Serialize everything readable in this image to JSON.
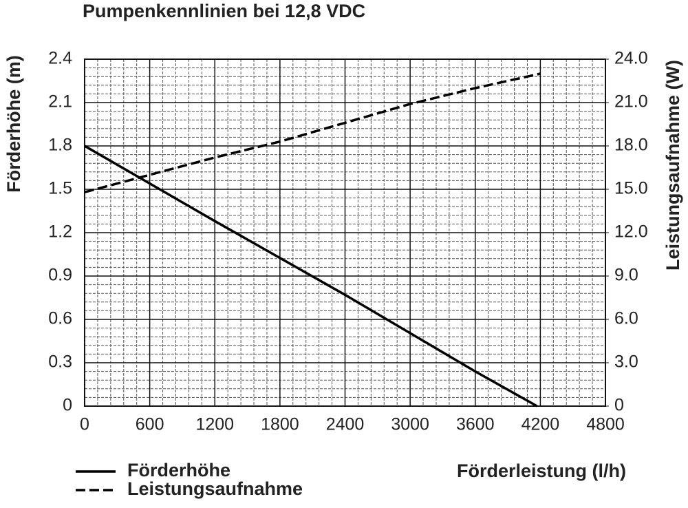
{
  "chart_data": {
    "type": "line",
    "title": "Pumpenkennlinien bei 12,8 VDC",
    "x_label": "Förderleistung (l/h)",
    "y_label": "Förderhöhe (m)",
    "y2_label": "Leistungsaufnahme (W)",
    "xlim": [
      0,
      4800
    ],
    "xticks": [
      0,
      600,
      1200,
      1800,
      2400,
      3000,
      3600,
      4200,
      4800
    ],
    "ylim": [
      0,
      2.4
    ],
    "yticks": [
      0,
      0.3,
      0.6,
      0.9,
      1.2,
      1.5,
      1.8,
      2.1,
      2.4
    ],
    "y2lim": [
      0,
      24
    ],
    "y2ticks": [
      0,
      {
        "value": 3,
        "label": "3.0"
      },
      {
        "value": 6,
        "label": "6.0"
      },
      {
        "value": 9,
        "label": "9.0"
      },
      {
        "value": 12,
        "label": "12.0"
      },
      {
        "value": 15,
        "label": "15.0"
      },
      {
        "value": 18,
        "label": "18.0"
      },
      {
        "value": 21,
        "label": "21.0"
      },
      {
        "value": 24,
        "label": "24.0"
      }
    ],
    "grid": true,
    "minor_grid": true,
    "legend": "bottom-left",
    "series": [
      {
        "name": "Förderhöhe",
        "color": "#000000",
        "dash": "solid",
        "x": [
          0,
          1200,
          2400,
          3600,
          4170
        ],
        "values": [
          1.8,
          1.28,
          0.77,
          0.24,
          0
        ]
      },
      {
        "name": "Leistungsaufnahme",
        "color": "#000000",
        "dash": "dashed",
        "axis": "y2",
        "x": [
          0,
          600,
          1200,
          1800,
          2400,
          3000,
          3600,
          4200
        ],
        "values": [
          14.8,
          16.0,
          17.2,
          18.3,
          19.6,
          20.9,
          22.0,
          23.0
        ]
      }
    ]
  }
}
